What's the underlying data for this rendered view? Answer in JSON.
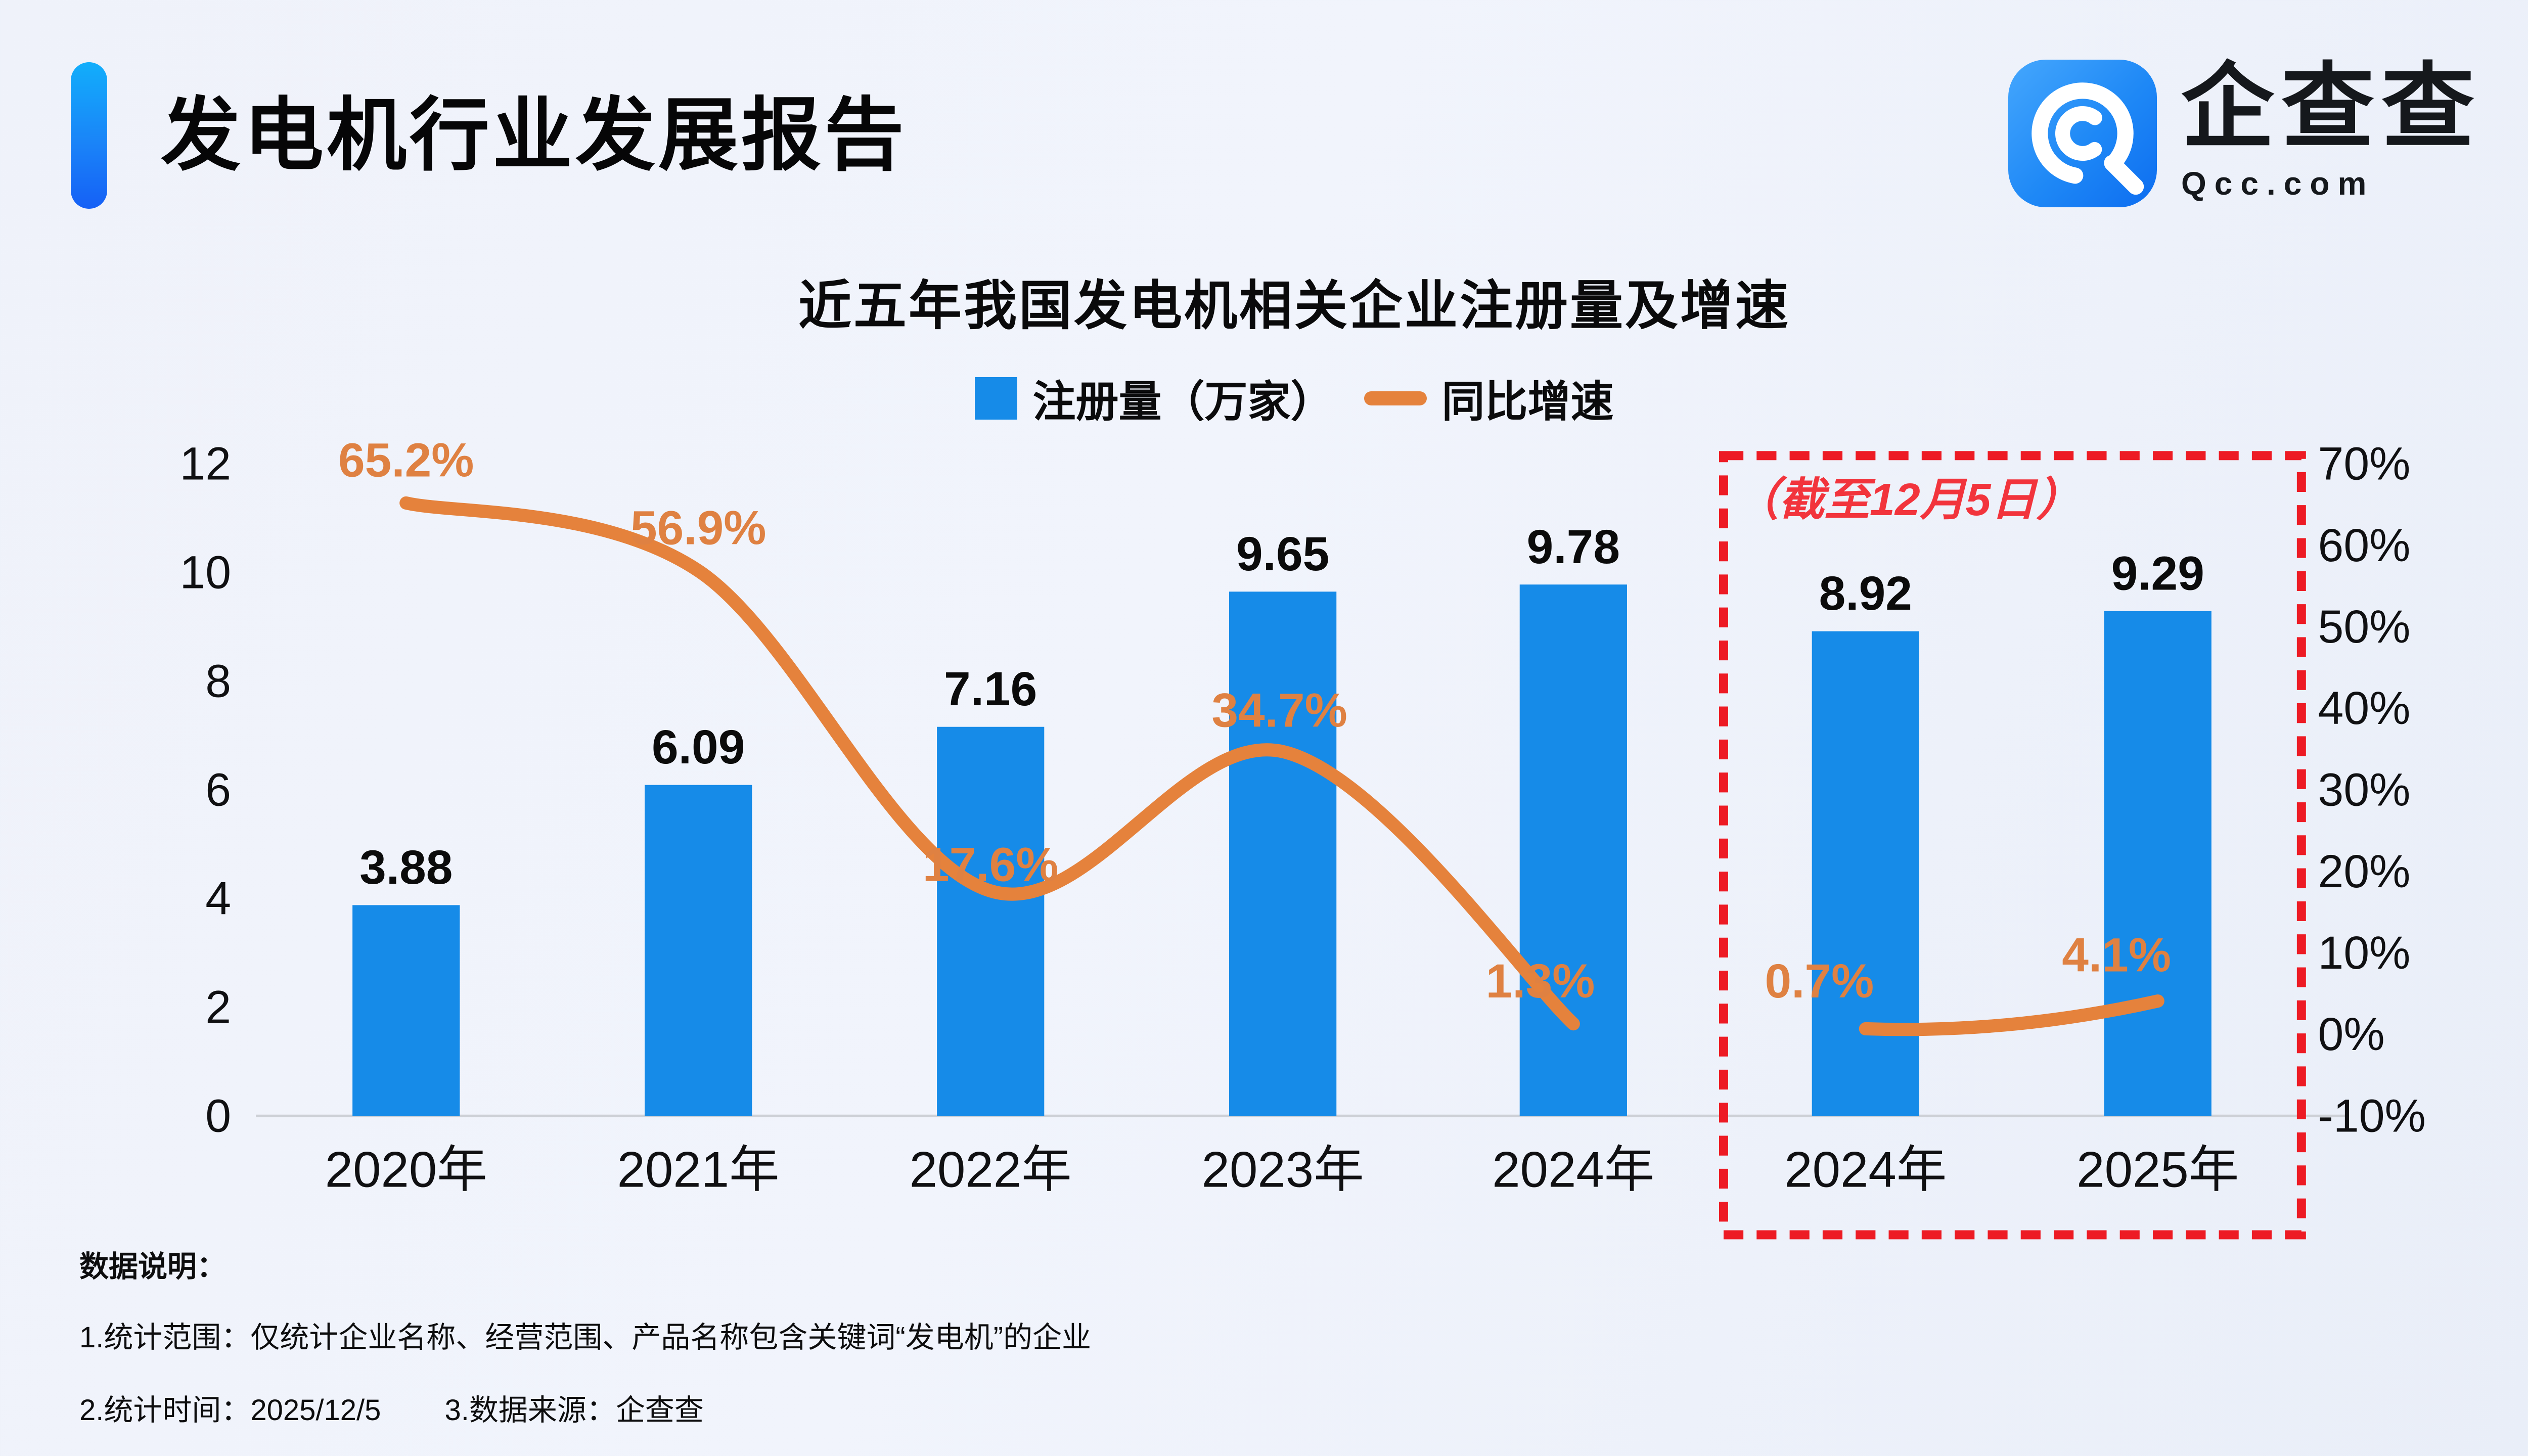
{
  "page": {
    "background": "#eef1f9"
  },
  "header": {
    "title": "发电机行业发展报告",
    "accent_color": "#1583f0"
  },
  "logo": {
    "name": "企查查",
    "domain": "Qcc.com",
    "icon": "qcc-spiral-q",
    "icon_color": "#1e88f6"
  },
  "chart": {
    "title": "近五年我国发电机相关企业注册量及增速",
    "legend": [
      {
        "label": "注册量（万家）",
        "marker": "square",
        "color": "#168be8"
      },
      {
        "label": "同比增速",
        "marker": "line",
        "color": "#e5823c"
      }
    ],
    "annotation_box_label": "（截至12月5日）"
  },
  "chart_data": {
    "type": "bar",
    "title": "近五年我国发电机相关企业注册量及增速",
    "categories": [
      "2020年",
      "2021年",
      "2022年",
      "2023年",
      "2024年",
      "2024年",
      "2025年"
    ],
    "series": [
      {
        "name": "注册量（万家）",
        "type": "bar",
        "axis": "left",
        "color": "#168be8",
        "values": [
          3.88,
          6.09,
          7.16,
          9.65,
          9.78,
          8.92,
          9.29
        ]
      },
      {
        "name": "同比增速",
        "type": "line",
        "axis": "right",
        "color": "#e5823c",
        "values_pct": [
          65.2,
          56.9,
          17.6,
          34.7,
          1.3,
          0.7,
          4.1
        ],
        "segments": [
          [
            0,
            4
          ],
          [
            5,
            6
          ]
        ]
      }
    ],
    "left_axis": {
      "ticks": [
        0,
        2,
        4,
        6,
        8,
        10,
        12
      ],
      "range": [
        0,
        12
      ]
    },
    "right_axis": {
      "ticks_pct": [
        70,
        60,
        50,
        40,
        30,
        20,
        10,
        0,
        -10
      ],
      "range_pct": [
        -10,
        70
      ]
    },
    "annotation": {
      "label": "（截至12月5日）",
      "box_category_indexes": [
        5,
        6
      ],
      "box_color": "#ed1b24",
      "text_color": "#f2343c"
    },
    "grid": false,
    "legend_position": "top-center",
    "axis_line_color": "#cdd0d6",
    "value_label_color": "#0b0b0b",
    "pct_label_color": "#df8142"
  },
  "footnotes": {
    "heading": "数据说明：",
    "line1": "1.统计范围：仅统计企业名称、经营范围、产品名称包含关键词“发电机”的企业",
    "line2a": "2.统计时间：2025/12/5",
    "line2b": "3.数据来源：企查查"
  }
}
